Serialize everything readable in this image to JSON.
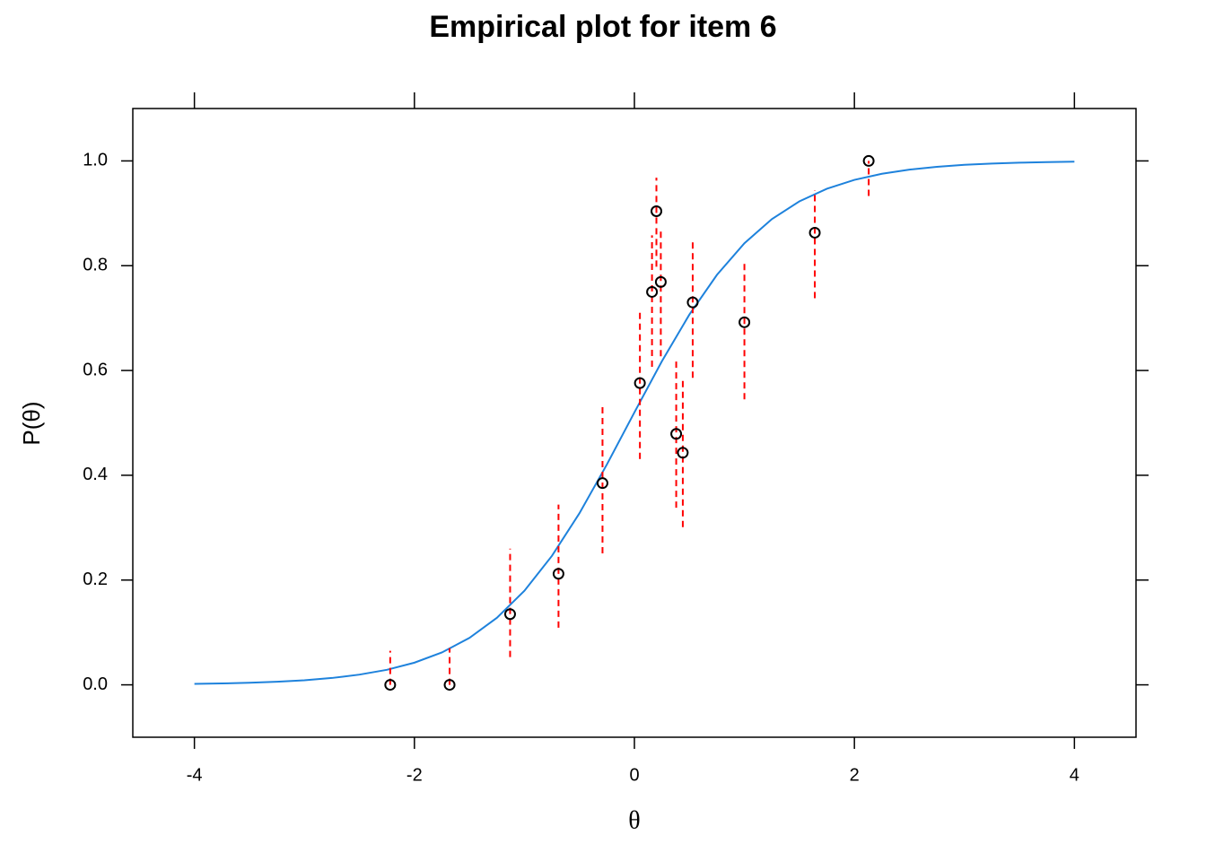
{
  "chart_data": {
    "type": "scatter",
    "title": "Empirical plot for item 6",
    "xlabel": "θ",
    "ylabel": "P(θ)",
    "xlim": [
      -4.56,
      4.56
    ],
    "ylim": [
      -0.1,
      1.1
    ],
    "xticks": [
      -4,
      -2,
      0,
      2,
      4
    ],
    "yticks": [
      {
        "value": 0,
        "label": "0.0"
      },
      {
        "value": 0.2,
        "label": "0.2"
      },
      {
        "value": 0.4,
        "label": "0.4"
      },
      {
        "value": 0.6,
        "label": "0.6"
      },
      {
        "value": 0.8,
        "label": "0.8"
      },
      {
        "value": 1,
        "label": "1.0"
      }
    ],
    "points": {
      "color": "#000000",
      "error_color": "#ff0000",
      "x": [
        -2.22,
        -1.68,
        -1.13,
        -0.69,
        -0.29,
        0.05,
        0.16,
        0.2,
        0.24,
        0.38,
        0.44,
        0.53,
        1.0,
        1.64,
        2.13
      ],
      "values": [
        0,
        0,
        0.135,
        0.212,
        0.385,
        0.576,
        0.75,
        0.904,
        0.769,
        0.479,
        0.443,
        0.73,
        0.692,
        0.863,
        1.0
      ],
      "lower": [
        0,
        0,
        0.053,
        0.109,
        0.251,
        0.431,
        0.607,
        0.798,
        0.627,
        0.338,
        0.301,
        0.586,
        0.545,
        0.738,
        0.933
      ],
      "upper": [
        0.065,
        0.07,
        0.26,
        0.344,
        0.532,
        0.715,
        0.858,
        0.968,
        0.865,
        0.622,
        0.586,
        0.848,
        0.81,
        0.944,
        1.0
      ]
    },
    "curve": {
      "color": "#1e82dc",
      "x": [
        -4,
        -3.75,
        -3.5,
        -3.25,
        -3,
        -2.75,
        -2.5,
        -2.25,
        -2,
        -1.75,
        -1.5,
        -1.25,
        -1,
        -0.75,
        -0.5,
        -0.25,
        0,
        0.25,
        0.5,
        0.75,
        1,
        1.25,
        1.5,
        1.75,
        2,
        2.25,
        2.5,
        2.75,
        3,
        3.25,
        3.5,
        3.75,
        4
      ],
      "values": [
        0.0018,
        0.0027,
        0.004,
        0.0059,
        0.0088,
        0.0131,
        0.0195,
        0.0287,
        0.0423,
        0.0618,
        0.0895,
        0.1279,
        0.1795,
        0.2461,
        0.3274,
        0.4207,
        0.52,
        0.6177,
        0.7068,
        0.7824,
        0.8429,
        0.889,
        0.9228,
        0.9469,
        0.9638,
        0.9754,
        0.9834,
        0.9888,
        0.9925,
        0.9949,
        0.9966,
        0.9977,
        0.9985
      ]
    }
  }
}
